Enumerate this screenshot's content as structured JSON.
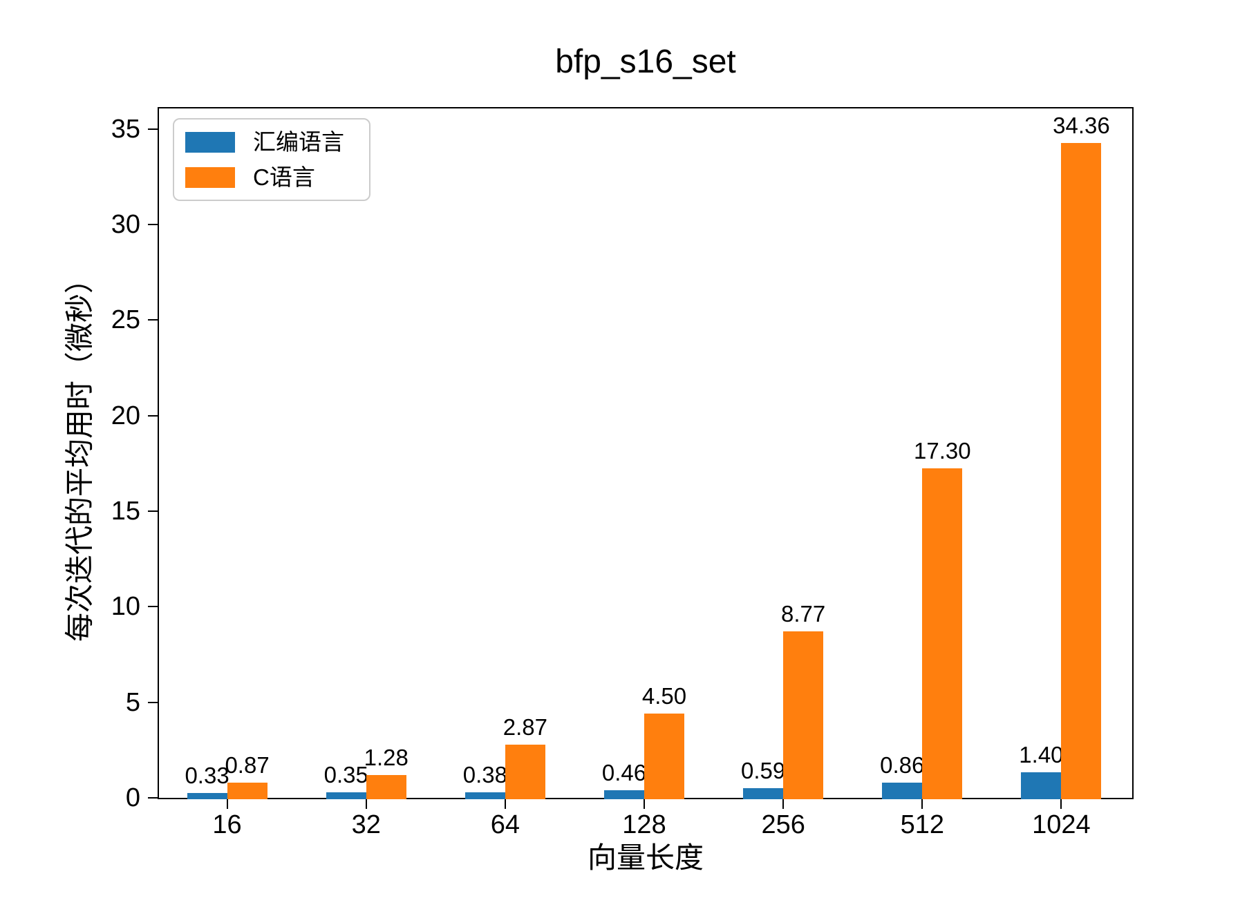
{
  "figure": {
    "title": "bfp_s16_set"
  },
  "chart_data": {
    "type": "bar",
    "title": "bfp_s16_set",
    "xlabel": "向量长度",
    "ylabel": "每次迭代的平均用时（微秒）",
    "categories": [
      "16",
      "32",
      "64",
      "128",
      "256",
      "512",
      "1024"
    ],
    "series": [
      {
        "name": "汇编语言",
        "color": "#1f77b4",
        "values": [
          0.33,
          0.35,
          0.38,
          0.46,
          0.59,
          0.86,
          1.4
        ],
        "labels": [
          "0.33",
          "0.35",
          "0.38",
          "0.46",
          "0.59",
          "0.86",
          "1.40"
        ]
      },
      {
        "name": "C语言",
        "color": "#ff7f0e",
        "values": [
          0.87,
          1.28,
          2.87,
          4.5,
          8.77,
          17.3,
          34.36
        ],
        "labels": [
          "0.87",
          "1.28",
          "2.87",
          "4.50",
          "8.77",
          "17.30",
          "34.36"
        ]
      }
    ],
    "ylim": [
      0,
      36.08
    ],
    "yticks": [
      0,
      5,
      10,
      15,
      20,
      25,
      30,
      35
    ],
    "grid": false,
    "legend_position": "upper left",
    "bar_label_format": "%.2f",
    "background_color": "#ffffff",
    "text_color": "#000000"
  }
}
